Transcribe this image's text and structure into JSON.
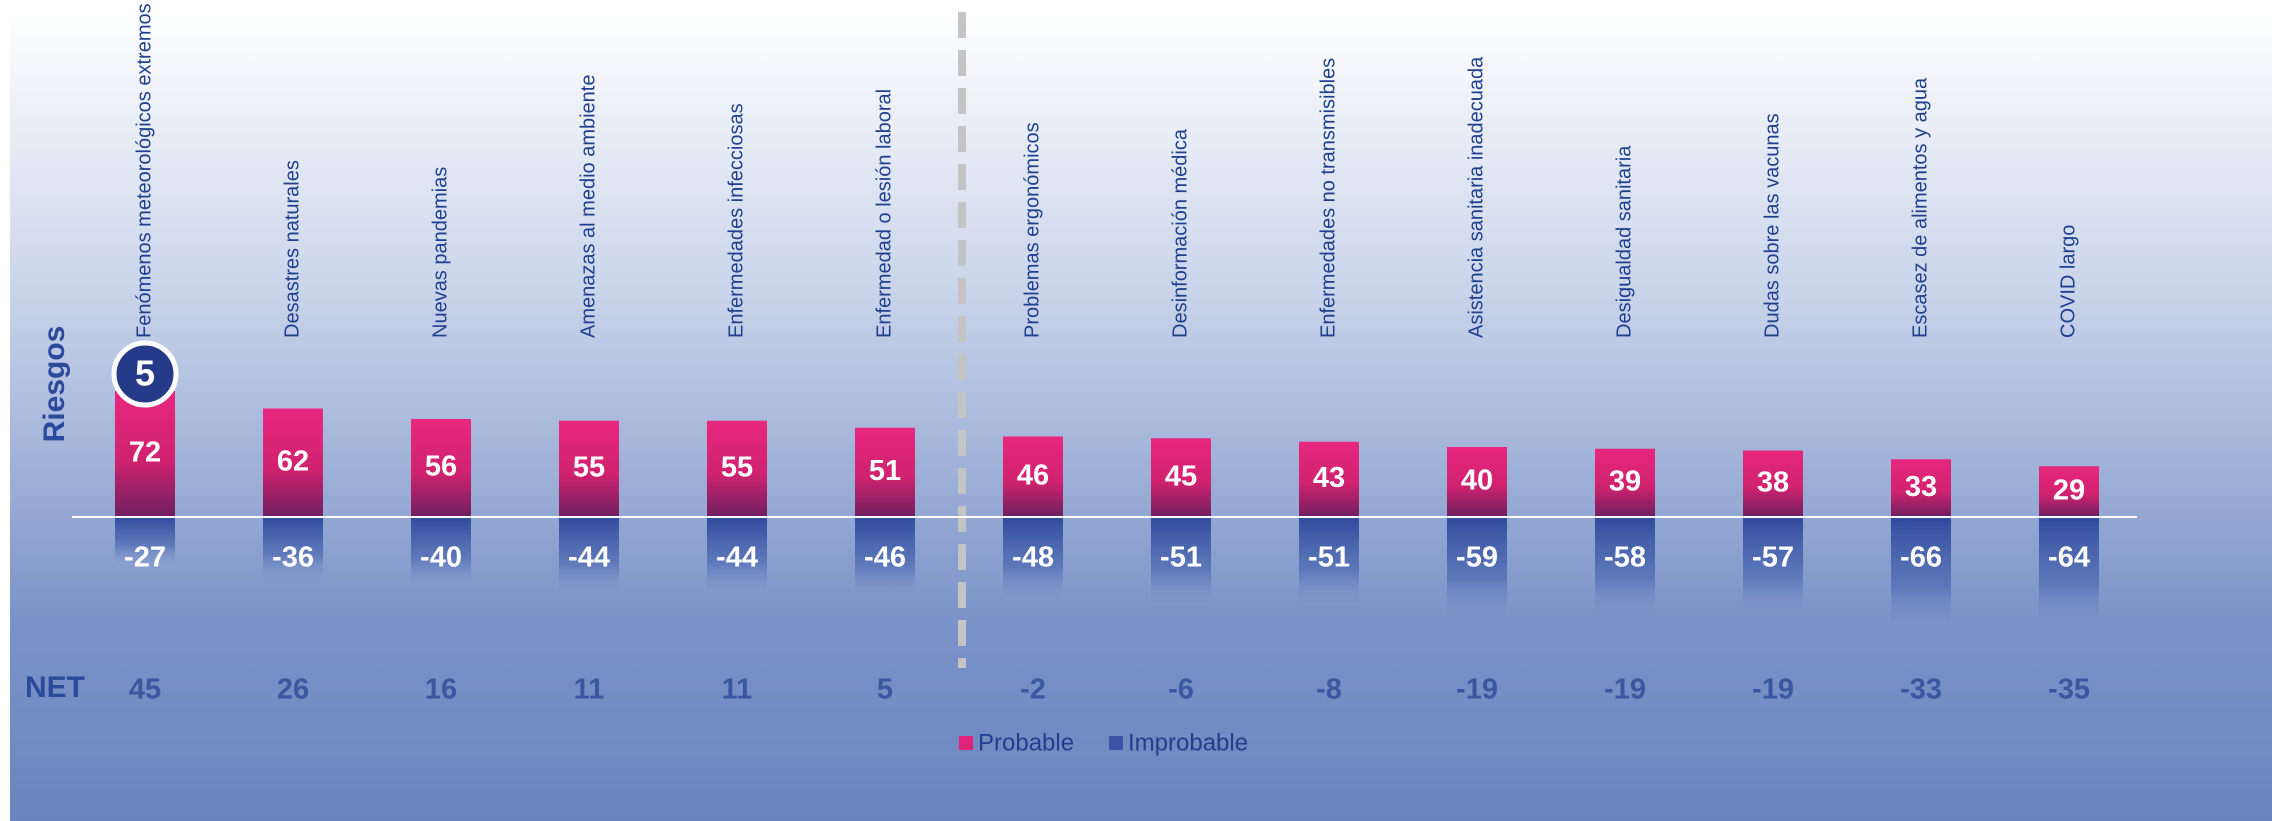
{
  "chart_data": {
    "type": "bar",
    "y_label": "Riesgos",
    "badge": "5",
    "categories": [
      "Fenómenos meteorológicos extremos",
      "Desastres naturales",
      "Nuevas pandemias",
      "Amenazas al medio ambiente",
      "Enfermedades infecciosas",
      "Enfermedad o lesión laboral",
      "Problemas ergonómicos",
      "Desinformación médica",
      "Enfermedades no transmisibles",
      "Asistencia sanitaria inadecuada",
      "Desigualdad sanitaria",
      "Dudas sobre las vacunas",
      "Escasez de alimentos y agua",
      "COVID largo"
    ],
    "series": [
      {
        "name": "Probable",
        "color": "#e0247c",
        "values": [
          72,
          62,
          56,
          55,
          55,
          51,
          46,
          45,
          43,
          40,
          39,
          38,
          33,
          29
        ]
      },
      {
        "name": "Improbable",
        "color": "#3a55a6",
        "values": [
          -27,
          -36,
          -40,
          -44,
          -44,
          -46,
          -48,
          -51,
          -51,
          -59,
          -58,
          -57,
          -66,
          -64
        ]
      }
    ],
    "net": {
      "label": "NET",
      "values": [
        45,
        26,
        16,
        11,
        11,
        5,
        -2,
        -6,
        -8,
        -19,
        -19,
        -19,
        -33,
        -35
      ]
    },
    "ylim": [
      -80,
      80
    ]
  }
}
